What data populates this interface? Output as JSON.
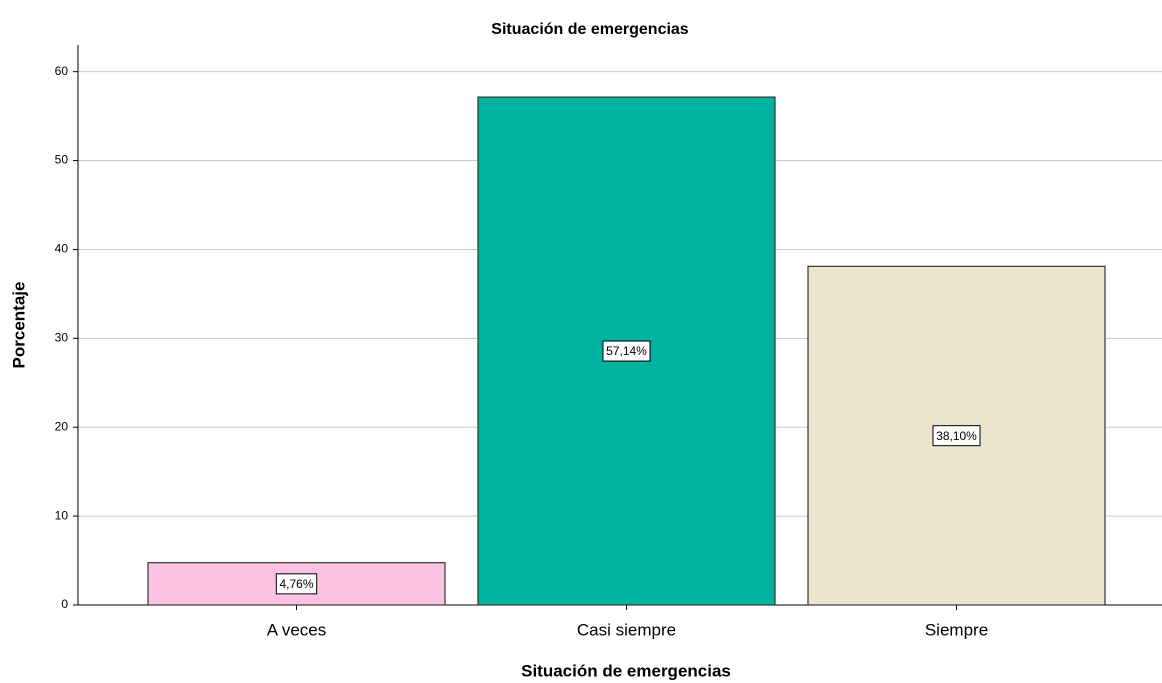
{
  "chart_data": {
    "type": "bar",
    "title": "Situación de emergencias",
    "x_label": "Situación de emergencias",
    "y_label": "Porcentaje",
    "categories": [
      "A veces",
      "Casi siempre",
      "Siempre"
    ],
    "values": [
      4.76,
      57.14,
      38.1
    ],
    "value_labels": [
      "4,76%",
      "57,14%",
      "38,10%"
    ],
    "colors": [
      "#fdc2e1",
      "#00b2a0",
      "#ebe5d0"
    ],
    "ylim": [
      0,
      63
    ],
    "yticks": [
      0,
      10,
      20,
      30,
      40,
      50,
      60
    ],
    "grid": true
  }
}
